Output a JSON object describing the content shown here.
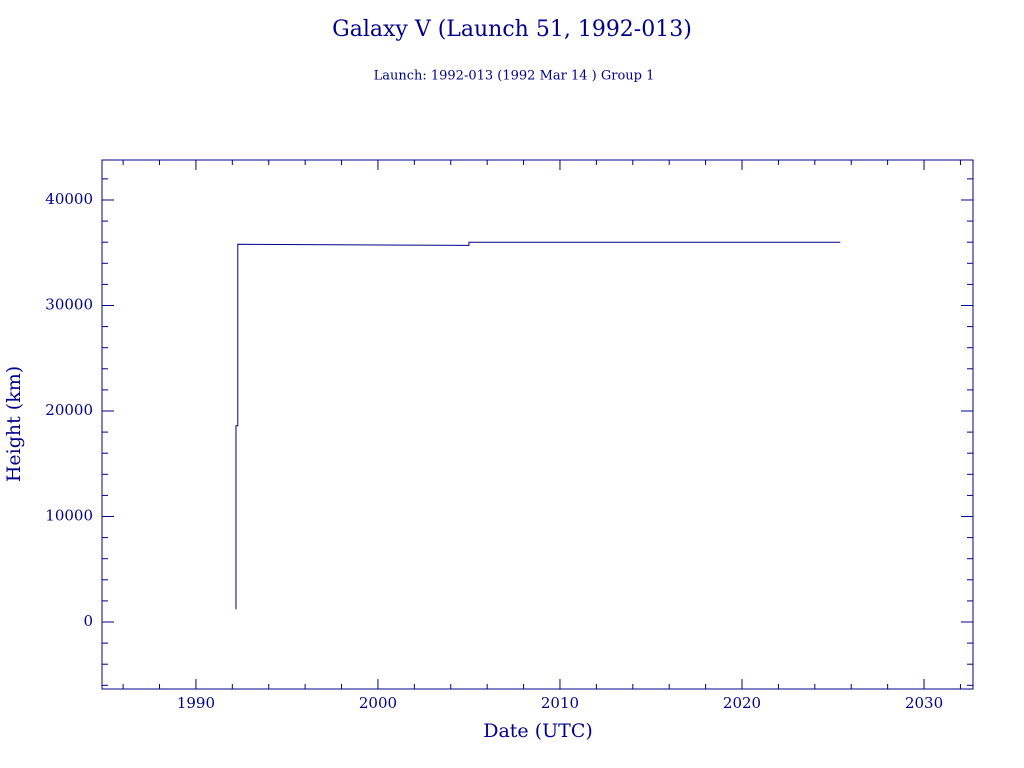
{
  "chart_data": {
    "type": "line",
    "title": "Galaxy V (Launch 51, 1992-013)",
    "subtitle": "Launch: 1992-013  (1992 Mar 14 )  Group 1",
    "x_label": "Date (UTC)",
    "y_label": "Height (km)",
    "color": "#00008b",
    "x": [
      1992.2,
      1992.2,
      1992.3,
      1992.3,
      2005.0,
      2005.0,
      2025.4
    ],
    "series": [
      {
        "values": [
          1200,
          18600,
          18600,
          35800,
          35700,
          36000,
          36000
        ]
      }
    ],
    "xlim": [
      1984.84,
      2032.69
    ],
    "ylim": [
      -6350,
      43790
    ],
    "xticks": [
      1990,
      2000,
      2010,
      2020,
      2030
    ],
    "yticks": [
      0,
      10000,
      20000,
      30000,
      40000
    ],
    "xminorticks": [
      1986,
      1988,
      1992,
      1994,
      1996,
      1998,
      2002,
      2004,
      2006,
      2008,
      2012,
      2014,
      2016,
      2018,
      2022,
      2024,
      2026,
      2028,
      2032
    ],
    "yminorticks": [
      -6000,
      -4000,
      -2000,
      2000,
      4000,
      6000,
      8000,
      12000,
      14000,
      16000,
      18000,
      22000,
      24000,
      26000,
      28000,
      32000,
      34000,
      36000,
      38000,
      42000
    ]
  }
}
